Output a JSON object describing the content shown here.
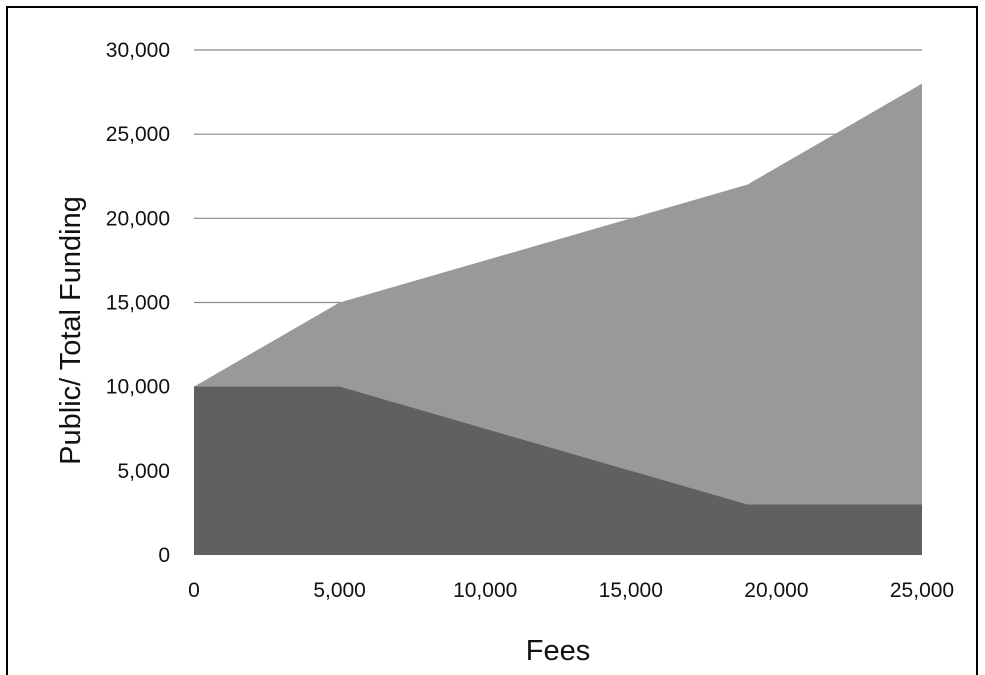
{
  "chart_data": {
    "type": "area",
    "xlabel": "Fees",
    "ylabel": "Public/ Total Funding",
    "xlim": [
      0,
      25000
    ],
    "ylim": [
      0,
      30000
    ],
    "x_ticks": [
      0,
      5000,
      10000,
      15000,
      20000,
      25000
    ],
    "x_tick_labels": [
      "0",
      "5,000",
      "10,000",
      "15,000",
      "20,000",
      "25,000"
    ],
    "y_ticks": [
      0,
      5000,
      10000,
      15000,
      20000,
      25000,
      30000
    ],
    "y_tick_labels": [
      "0",
      "5,000",
      "10,000",
      "15,000",
      "20,000",
      "25,000",
      "30,000"
    ],
    "grid": "horizontal",
    "legend": "none",
    "series": [
      {
        "role": "total",
        "color": "#999999",
        "x": [
          0,
          5000,
          19000,
          25000
        ],
        "values": [
          10000,
          15000,
          22000,
          28000
        ]
      },
      {
        "role": "public",
        "color": "#606060",
        "x": [
          0,
          5000,
          19000,
          25000
        ],
        "values": [
          10000,
          10000,
          3000,
          3000
        ]
      }
    ]
  }
}
